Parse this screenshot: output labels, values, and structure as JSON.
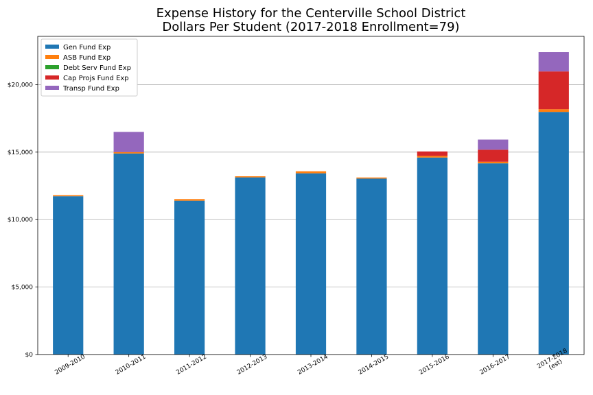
{
  "chart_data": {
    "type": "bar",
    "stacked": true,
    "title": [
      "Expense History for the Centerville School District",
      "Dollars Per Student (2017-2018 Enrollment=79)"
    ],
    "categories": [
      [
        "2009-2010"
      ],
      [
        "2010-2011"
      ],
      [
        "2011-2012"
      ],
      [
        "2012-2013"
      ],
      [
        "2013-2014"
      ],
      [
        "2014-2015"
      ],
      [
        "2015-2016"
      ],
      [
        "2016-2017"
      ],
      [
        "2017-2018",
        "(est)"
      ]
    ],
    "series": [
      {
        "name": "Gen Fund Exp",
        "color": "#1f77b4",
        "values": [
          11730,
          14900,
          11400,
          13130,
          13430,
          13040,
          14600,
          14170,
          17980
        ]
      },
      {
        "name": "ASB Fund Exp",
        "color": "#ff7f0e",
        "values": [
          80,
          100,
          120,
          80,
          150,
          80,
          120,
          120,
          200
        ]
      },
      {
        "name": "Debt Serv Fund Exp",
        "color": "#2ca02c",
        "values": [
          0,
          0,
          0,
          0,
          0,
          0,
          0,
          0,
          0
        ]
      },
      {
        "name": "Cap Projs Fund Exp",
        "color": "#d62728",
        "values": [
          0,
          0,
          0,
          0,
          0,
          0,
          330,
          890,
          2800
        ]
      },
      {
        "name": "Transp Fund Exp",
        "color": "#9467bd",
        "values": [
          0,
          1500,
          0,
          0,
          0,
          0,
          0,
          750,
          1430
        ]
      }
    ],
    "yticks": [
      {
        "value": 0,
        "label": "$0"
      },
      {
        "value": 5000,
        "label": "$5,000"
      },
      {
        "value": 10000,
        "label": "$10,000"
      },
      {
        "value": 15000,
        "label": "$15,000"
      },
      {
        "value": 20000,
        "label": "$20,000"
      }
    ],
    "ylim": [
      0,
      23580
    ],
    "grid": "horizontal",
    "legend_position": "top-left"
  }
}
